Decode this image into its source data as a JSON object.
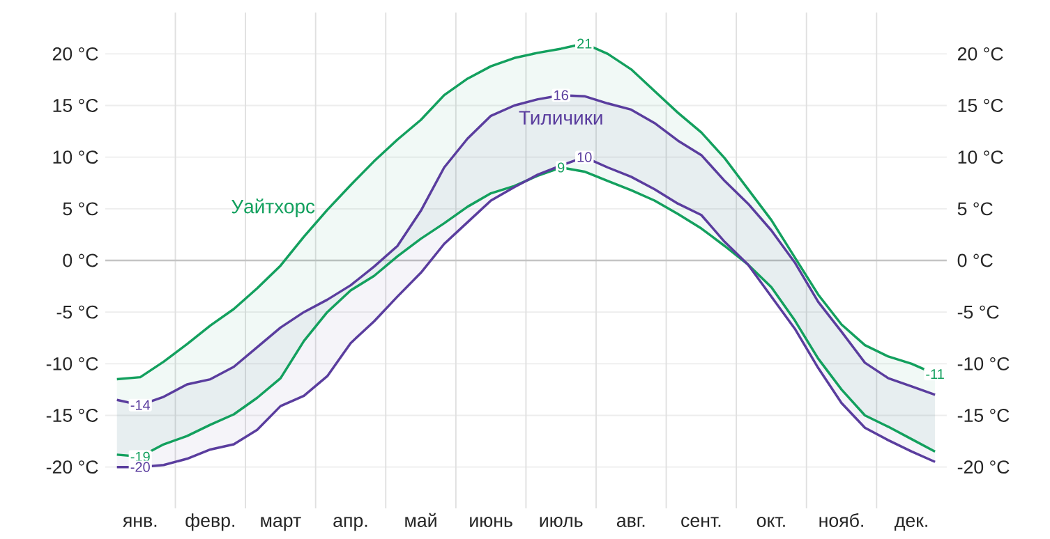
{
  "chart_data": {
    "type": "line",
    "categories": [
      null,
      "янв.",
      null,
      null,
      "февр.",
      null,
      null,
      "март",
      null,
      null,
      "апр.",
      null,
      null,
      "май",
      null,
      null,
      "июнь",
      null,
      null,
      "июль",
      null,
      null,
      "авг.",
      null,
      null,
      "сент.",
      null,
      null,
      "окт.",
      null,
      null,
      "нояб.",
      null,
      null,
      "дек.",
      null
    ],
    "ylim": [
      -24,
      24
    ],
    "yticks": [
      {
        "value": -20,
        "label": "-20 °C"
      },
      {
        "value": -15,
        "label": "-15 °C"
      },
      {
        "value": -10,
        "label": "-10 °C"
      },
      {
        "value": -5,
        "label": "-5 °C"
      },
      {
        "value": 0,
        "label": "0 °C"
      },
      {
        "value": 5,
        "label": "5 °C"
      },
      {
        "value": 10,
        "label": "10 °C"
      },
      {
        "value": 15,
        "label": "15 °C"
      },
      {
        "value": 20,
        "label": "20 °C"
      }
    ],
    "y2lim": [
      -24,
      24
    ],
    "y2ticks": [
      {
        "value": -20,
        "label": "-20 °C"
      },
      {
        "value": -15,
        "label": "-15 °C"
      },
      {
        "value": -10,
        "label": "-10 °C"
      },
      {
        "value": -5,
        "label": "-5 °C"
      },
      {
        "value": 0,
        "label": "0 °C"
      },
      {
        "value": 5,
        "label": "5 °C"
      },
      {
        "value": 10,
        "label": "10 °C"
      },
      {
        "value": 15,
        "label": "15 °C"
      },
      {
        "value": 20,
        "label": "20 °C"
      }
    ],
    "grid": true,
    "ref_lines": [
      {
        "axis": "y",
        "value": 0,
        "color": "#c4c4c4"
      }
    ],
    "series": [
      {
        "name": "Уайтхорс",
        "color": "#13a05e",
        "values": [
          -11.5,
          -11.3,
          -9.8,
          -8.1,
          -6.3,
          -4.7,
          -2.7,
          -0.5,
          2.3,
          4.9,
          7.3,
          9.6,
          11.7,
          13.6,
          16.0,
          17.6,
          18.8,
          19.6,
          20.1,
          20.5,
          21,
          20.0,
          18.5,
          16.4,
          14.3,
          12.4,
          9.9,
          6.9,
          3.9,
          0.3,
          -3.3,
          -6.2,
          -8.2,
          -9.3,
          -10.0,
          -11
        ],
        "value_labels": [
          null,
          null,
          null,
          null,
          null,
          null,
          null,
          null,
          null,
          null,
          null,
          null,
          null,
          null,
          null,
          null,
          null,
          null,
          null,
          null,
          "21",
          null,
          null,
          null,
          null,
          null,
          null,
          null,
          null,
          null,
          null,
          null,
          null,
          null,
          null,
          "-11"
        ]
      },
      {
        "color": "#13a05e",
        "values": [
          -18.8,
          -19,
          -17.8,
          -17.0,
          -15.9,
          -14.9,
          -13.3,
          -11.4,
          -7.8,
          -5.0,
          -2.9,
          -1.5,
          0.4,
          2.1,
          3.6,
          5.2,
          6.5,
          7.2,
          8.2,
          9,
          8.6,
          7.7,
          6.8,
          5.8,
          4.5,
          3.1,
          1.4,
          -0.4,
          -2.6,
          -5.8,
          -9.5,
          -12.5,
          -15.0,
          -16.1,
          -17.3,
          -18.5
        ],
        "value_labels": [
          null,
          "-19",
          null,
          null,
          null,
          null,
          null,
          null,
          null,
          null,
          null,
          null,
          null,
          null,
          null,
          null,
          null,
          null,
          null,
          "9",
          null,
          null,
          null,
          null,
          null,
          null,
          null,
          null,
          null,
          null,
          null,
          null,
          null,
          null,
          null,
          null
        ]
      },
      {
        "name": "Тиличики",
        "color": "#5a3d9e",
        "values": [
          -13.5,
          -14,
          -13.2,
          -12.0,
          -11.5,
          -10.3,
          -8.4,
          -6.5,
          -5.0,
          -3.8,
          -2.4,
          -0.6,
          1.4,
          4.8,
          9.0,
          11.8,
          14.0,
          15.0,
          15.6,
          16,
          15.9,
          15.2,
          14.6,
          13.3,
          11.6,
          10.2,
          7.7,
          5.5,
          2.9,
          -0.2,
          -4.0,
          -6.9,
          -9.9,
          -11.4,
          -12.2,
          -13.0
        ],
        "value_labels": [
          null,
          "-14",
          null,
          null,
          null,
          null,
          null,
          null,
          null,
          null,
          null,
          null,
          null,
          null,
          null,
          null,
          null,
          null,
          null,
          "16",
          null,
          null,
          null,
          null,
          null,
          null,
          null,
          null,
          null,
          null,
          null,
          null,
          null,
          null,
          null,
          null
        ]
      },
      {
        "color": "#5a3d9e",
        "values": [
          -20.0,
          -20,
          -19.8,
          -19.2,
          -18.3,
          -17.8,
          -16.4,
          -14.1,
          -13.1,
          -11.2,
          -8.0,
          -5.9,
          -3.5,
          -1.2,
          1.6,
          3.7,
          5.8,
          7.1,
          8.3,
          9.2,
          10,
          9.0,
          8.1,
          6.9,
          5.5,
          4.4,
          1.8,
          -0.4,
          -3.5,
          -6.6,
          -10.4,
          -13.8,
          -16.2,
          -17.4,
          -18.5,
          -19.5
        ],
        "value_labels": [
          null,
          "-20",
          null,
          null,
          null,
          null,
          null,
          null,
          null,
          null,
          null,
          null,
          null,
          null,
          null,
          null,
          null,
          null,
          null,
          null,
          "10",
          null,
          null,
          null,
          null,
          null,
          null,
          null,
          null,
          null,
          null,
          null,
          null,
          null,
          null,
          null
        ]
      }
    ]
  }
}
